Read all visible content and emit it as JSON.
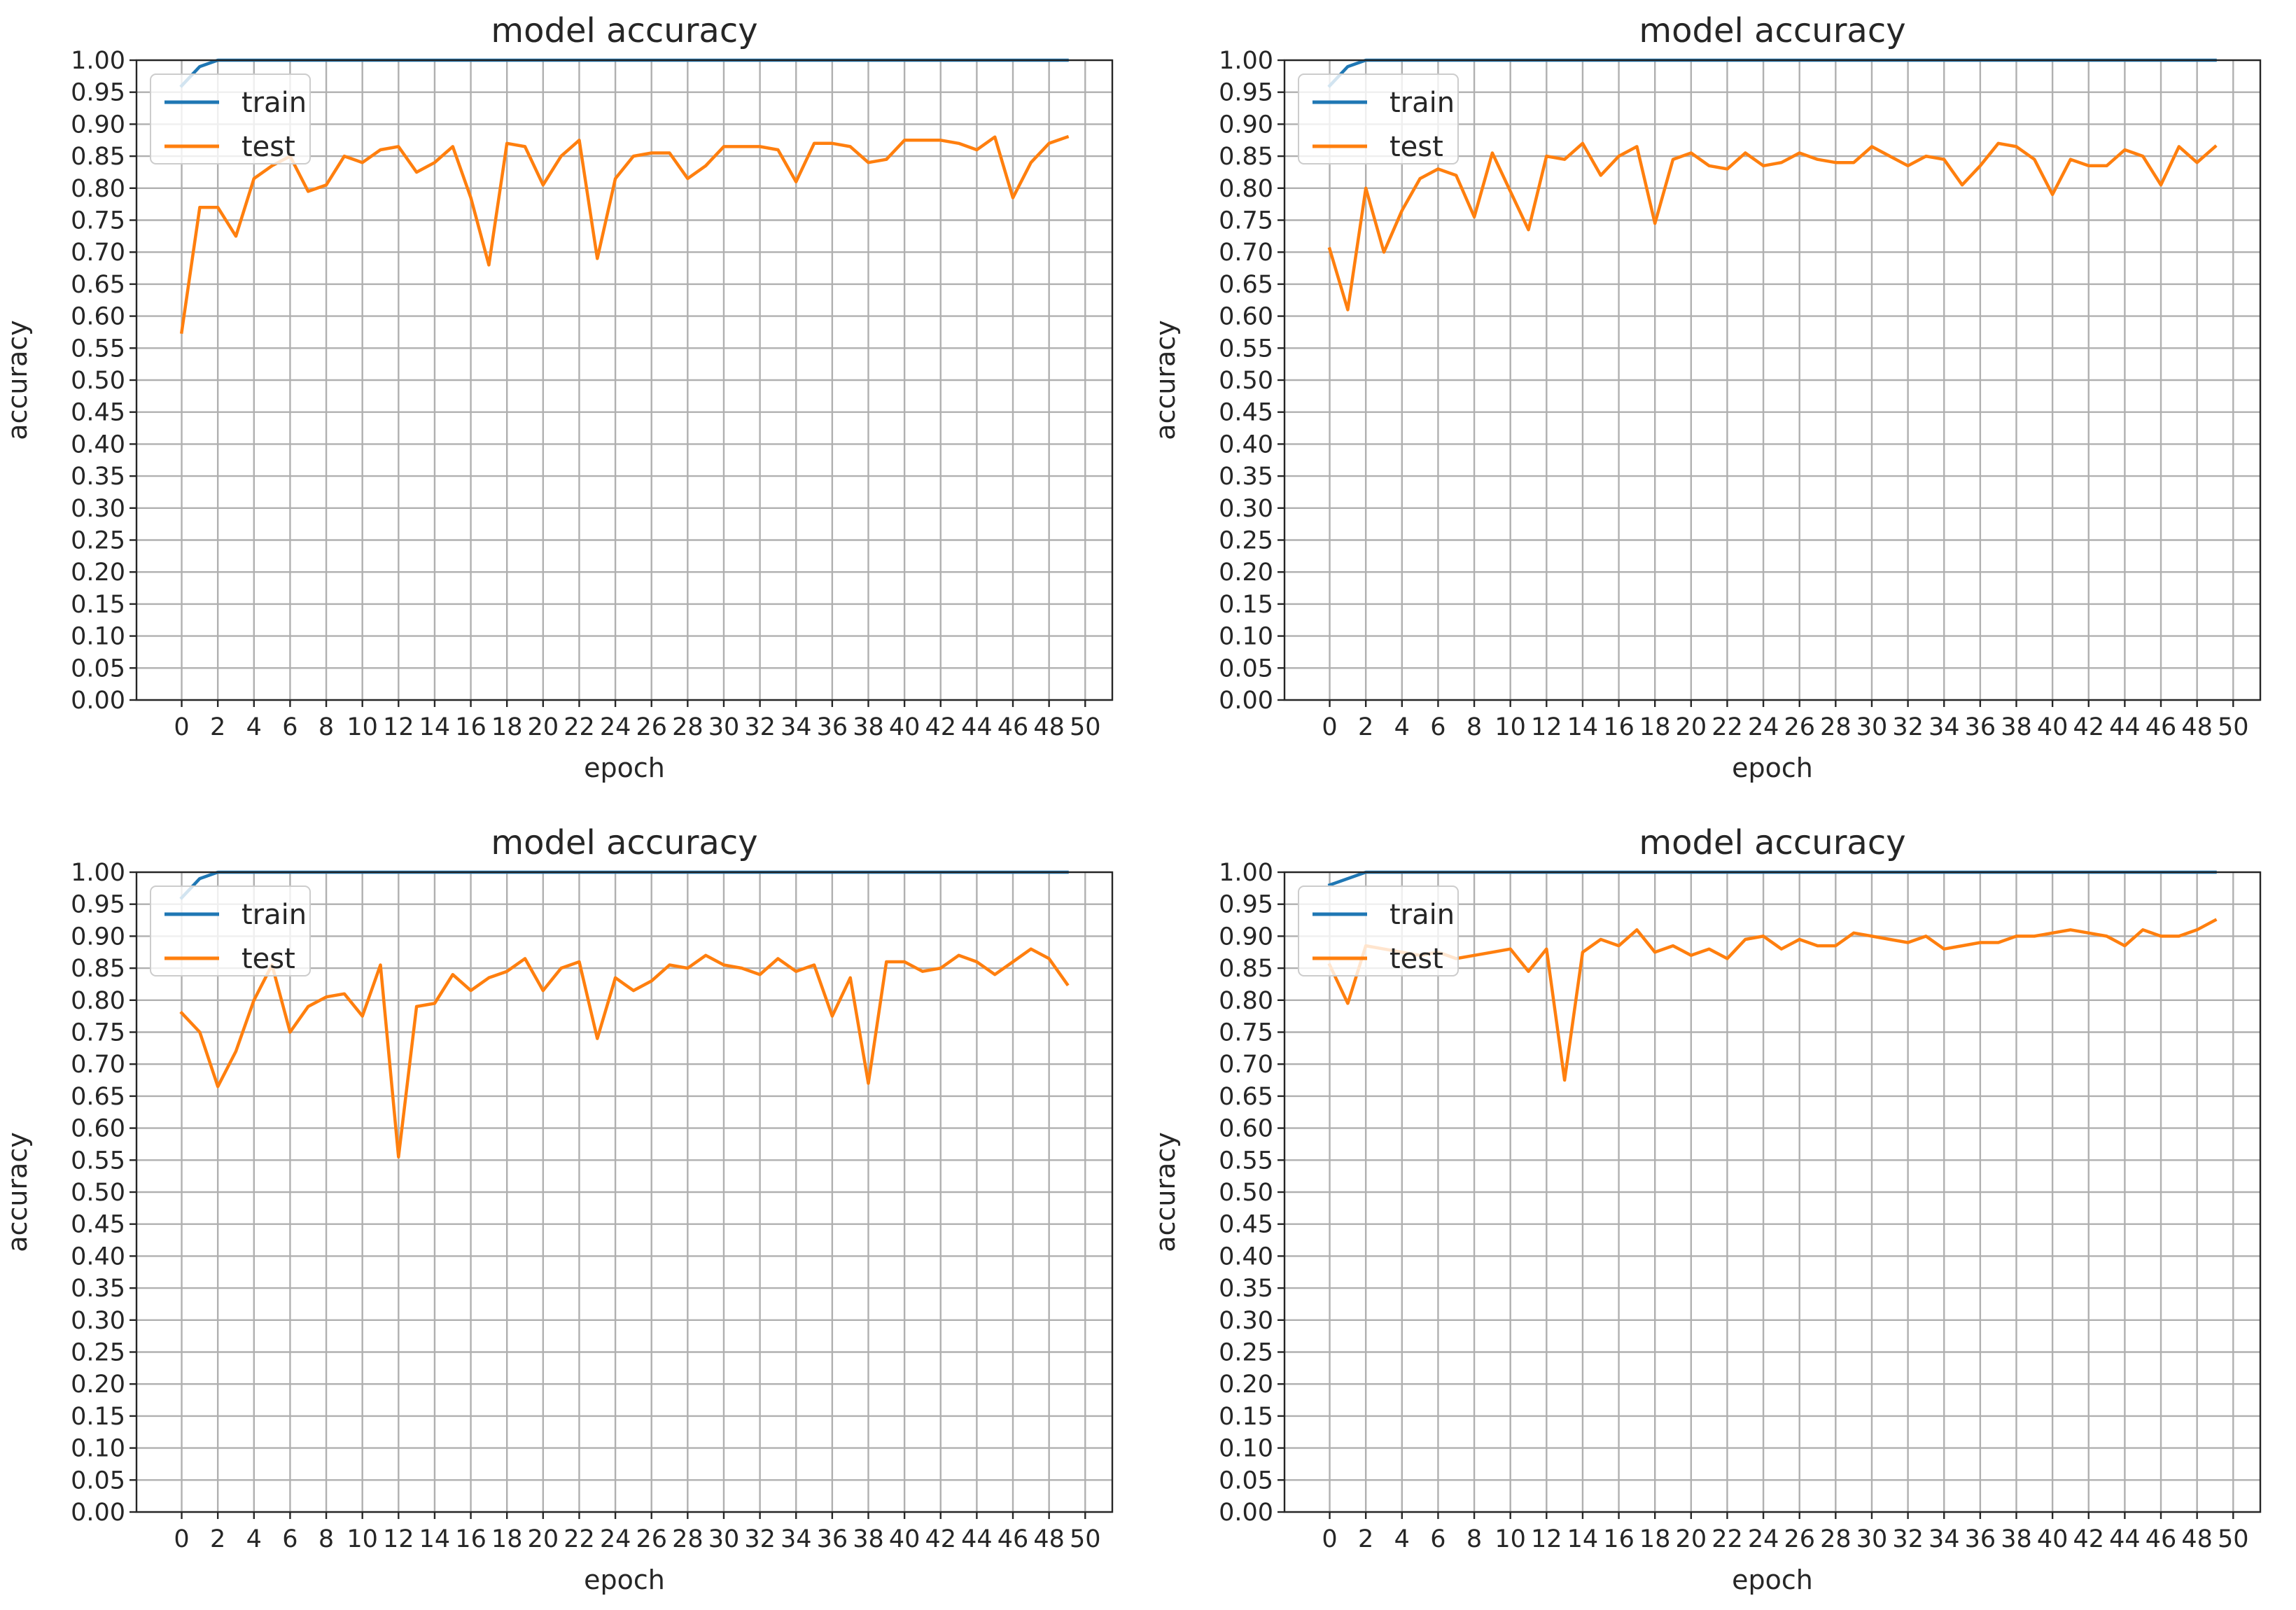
{
  "chart_data": [
    {
      "type": "line",
      "title": "model accuracy",
      "xlabel": "epoch",
      "ylabel": "accuracy",
      "xlim": [
        -2.5,
        51.5
      ],
      "ylim": [
        0,
        1
      ],
      "xticks": [
        0,
        2,
        4,
        6,
        8,
        10,
        12,
        14,
        16,
        18,
        20,
        22,
        24,
        26,
        28,
        30,
        32,
        34,
        36,
        38,
        40,
        42,
        44,
        46,
        48,
        50
      ],
      "yticks": [
        0,
        0.05,
        0.1,
        0.15,
        0.2,
        0.25,
        0.3,
        0.35,
        0.4,
        0.45,
        0.5,
        0.55,
        0.6,
        0.65,
        0.7,
        0.75,
        0.8,
        0.85,
        0.9,
        0.95,
        1.0
      ],
      "grid": true,
      "legend_position": "upper-left",
      "x": [
        0,
        1,
        2,
        3,
        4,
        5,
        6,
        7,
        8,
        9,
        10,
        11,
        12,
        13,
        14,
        15,
        16,
        17,
        18,
        19,
        20,
        21,
        22,
        23,
        24,
        25,
        26,
        27,
        28,
        29,
        30,
        31,
        32,
        33,
        34,
        35,
        36,
        37,
        38,
        39,
        40,
        41,
        42,
        43,
        44,
        45,
        46,
        47,
        48,
        49
      ],
      "series": [
        {
          "name": "train",
          "color": "#1f77b4",
          "values": [
            0.96,
            0.99,
            1,
            1,
            1,
            1,
            1,
            1,
            1,
            1,
            1,
            1,
            1,
            1,
            1,
            1,
            1,
            1,
            1,
            1,
            1,
            1,
            1,
            1,
            1,
            1,
            1,
            1,
            1,
            1,
            1,
            1,
            1,
            1,
            1,
            1,
            1,
            1,
            1,
            1,
            1,
            1,
            1,
            1,
            1,
            1,
            1,
            1,
            1,
            1
          ]
        },
        {
          "name": "test",
          "color": "#ff7f0e",
          "values": [
            0.575,
            0.77,
            0.77,
            0.725,
            0.815,
            0.835,
            0.85,
            0.795,
            0.805,
            0.85,
            0.84,
            0.86,
            0.865,
            0.825,
            0.84,
            0.865,
            0.785,
            0.68,
            0.87,
            0.865,
            0.805,
            0.85,
            0.875,
            0.69,
            0.815,
            0.85,
            0.855,
            0.855,
            0.815,
            0.835,
            0.865,
            0.865,
            0.865,
            0.86,
            0.81,
            0.87,
            0.87,
            0.865,
            0.84,
            0.845,
            0.875,
            0.875,
            0.875,
            0.87,
            0.86,
            0.88,
            0.785,
            0.84,
            0.87,
            0.88
          ]
        }
      ]
    },
    {
      "type": "line",
      "title": "model accuracy",
      "xlabel": "epoch",
      "ylabel": "accuracy",
      "xlim": [
        -2.5,
        51.5
      ],
      "ylim": [
        0,
        1
      ],
      "xticks": [
        0,
        2,
        4,
        6,
        8,
        10,
        12,
        14,
        16,
        18,
        20,
        22,
        24,
        26,
        28,
        30,
        32,
        34,
        36,
        38,
        40,
        42,
        44,
        46,
        48,
        50
      ],
      "yticks": [
        0,
        0.05,
        0.1,
        0.15,
        0.2,
        0.25,
        0.3,
        0.35,
        0.4,
        0.45,
        0.5,
        0.55,
        0.6,
        0.65,
        0.7,
        0.75,
        0.8,
        0.85,
        0.9,
        0.95,
        1.0
      ],
      "grid": true,
      "legend_position": "upper-left",
      "x": [
        0,
        1,
        2,
        3,
        4,
        5,
        6,
        7,
        8,
        9,
        10,
        11,
        12,
        13,
        14,
        15,
        16,
        17,
        18,
        19,
        20,
        21,
        22,
        23,
        24,
        25,
        26,
        27,
        28,
        29,
        30,
        31,
        32,
        33,
        34,
        35,
        36,
        37,
        38,
        39,
        40,
        41,
        42,
        43,
        44,
        45,
        46,
        47,
        48,
        49
      ],
      "series": [
        {
          "name": "train",
          "color": "#1f77b4",
          "values": [
            0.96,
            0.99,
            1,
            1,
            1,
            1,
            1,
            1,
            1,
            1,
            1,
            1,
            1,
            1,
            1,
            1,
            1,
            1,
            1,
            1,
            1,
            1,
            1,
            1,
            1,
            1,
            1,
            1,
            1,
            1,
            1,
            1,
            1,
            1,
            1,
            1,
            1,
            1,
            1,
            1,
            1,
            1,
            1,
            1,
            1,
            1,
            1,
            1,
            1,
            1
          ]
        },
        {
          "name": "test",
          "color": "#ff7f0e",
          "values": [
            0.705,
            0.61,
            0.8,
            0.7,
            0.765,
            0.815,
            0.83,
            0.82,
            0.755,
            0.855,
            0.795,
            0.735,
            0.85,
            0.845,
            0.87,
            0.82,
            0.85,
            0.865,
            0.745,
            0.845,
            0.855,
            0.835,
            0.83,
            0.855,
            0.835,
            0.84,
            0.855,
            0.845,
            0.84,
            0.84,
            0.865,
            0.85,
            0.835,
            0.85,
            0.845,
            0.805,
            0.835,
            0.87,
            0.865,
            0.845,
            0.79,
            0.845,
            0.835,
            0.835,
            0.86,
            0.85,
            0.805,
            0.865,
            0.84,
            0.865
          ]
        }
      ]
    },
    {
      "type": "line",
      "title": "model accuracy",
      "xlabel": "epoch",
      "ylabel": "accuracy",
      "xlim": [
        -2.5,
        51.5
      ],
      "ylim": [
        0,
        1
      ],
      "xticks": [
        0,
        2,
        4,
        6,
        8,
        10,
        12,
        14,
        16,
        18,
        20,
        22,
        24,
        26,
        28,
        30,
        32,
        34,
        36,
        38,
        40,
        42,
        44,
        46,
        48,
        50
      ],
      "yticks": [
        0,
        0.05,
        0.1,
        0.15,
        0.2,
        0.25,
        0.3,
        0.35,
        0.4,
        0.45,
        0.5,
        0.55,
        0.6,
        0.65,
        0.7,
        0.75,
        0.8,
        0.85,
        0.9,
        0.95,
        1.0
      ],
      "grid": true,
      "legend_position": "upper-left",
      "x": [
        0,
        1,
        2,
        3,
        4,
        5,
        6,
        7,
        8,
        9,
        10,
        11,
        12,
        13,
        14,
        15,
        16,
        17,
        18,
        19,
        20,
        21,
        22,
        23,
        24,
        25,
        26,
        27,
        28,
        29,
        30,
        31,
        32,
        33,
        34,
        35,
        36,
        37,
        38,
        39,
        40,
        41,
        42,
        43,
        44,
        45,
        46,
        47,
        48,
        49
      ],
      "series": [
        {
          "name": "train",
          "color": "#1f77b4",
          "values": [
            0.96,
            0.99,
            1,
            1,
            1,
            1,
            1,
            1,
            1,
            1,
            1,
            1,
            1,
            1,
            1,
            1,
            1,
            1,
            1,
            1,
            1,
            1,
            1,
            1,
            1,
            1,
            1,
            1,
            1,
            1,
            1,
            1,
            1,
            1,
            1,
            1,
            1,
            1,
            1,
            1,
            1,
            1,
            1,
            1,
            1,
            1,
            1,
            1,
            1,
            1
          ]
        },
        {
          "name": "test",
          "color": "#ff7f0e",
          "values": [
            0.78,
            0.75,
            0.665,
            0.72,
            0.8,
            0.855,
            0.75,
            0.79,
            0.805,
            0.81,
            0.775,
            0.855,
            0.555,
            0.79,
            0.795,
            0.84,
            0.815,
            0.835,
            0.845,
            0.865,
            0.815,
            0.85,
            0.86,
            0.74,
            0.835,
            0.815,
            0.83,
            0.855,
            0.85,
            0.87,
            0.855,
            0.85,
            0.84,
            0.865,
            0.845,
            0.855,
            0.775,
            0.835,
            0.67,
            0.86,
            0.86,
            0.845,
            0.85,
            0.87,
            0.86,
            0.84,
            0.86,
            0.88,
            0.865,
            0.825
          ]
        }
      ]
    },
    {
      "type": "line",
      "title": "model accuracy",
      "xlabel": "epoch",
      "ylabel": "accuracy",
      "xlim": [
        -2.5,
        51.5
      ],
      "ylim": [
        0,
        1
      ],
      "xticks": [
        0,
        2,
        4,
        6,
        8,
        10,
        12,
        14,
        16,
        18,
        20,
        22,
        24,
        26,
        28,
        30,
        32,
        34,
        36,
        38,
        40,
        42,
        44,
        46,
        48,
        50
      ],
      "yticks": [
        0,
        0.05,
        0.1,
        0.15,
        0.2,
        0.25,
        0.3,
        0.35,
        0.4,
        0.45,
        0.5,
        0.55,
        0.6,
        0.65,
        0.7,
        0.75,
        0.8,
        0.85,
        0.9,
        0.95,
        1.0
      ],
      "grid": true,
      "legend_position": "upper-left",
      "x": [
        0,
        1,
        2,
        3,
        4,
        5,
        6,
        7,
        8,
        9,
        10,
        11,
        12,
        13,
        14,
        15,
        16,
        17,
        18,
        19,
        20,
        21,
        22,
        23,
        24,
        25,
        26,
        27,
        28,
        29,
        30,
        31,
        32,
        33,
        34,
        35,
        36,
        37,
        38,
        39,
        40,
        41,
        42,
        43,
        44,
        45,
        46,
        47,
        48,
        49
      ],
      "series": [
        {
          "name": "train",
          "color": "#1f77b4",
          "values": [
            0.98,
            0.99,
            1,
            1,
            1,
            1,
            1,
            1,
            1,
            1,
            1,
            1,
            1,
            1,
            1,
            1,
            1,
            1,
            1,
            1,
            1,
            1,
            1,
            1,
            1,
            1,
            1,
            1,
            1,
            1,
            1,
            1,
            1,
            1,
            1,
            1,
            1,
            1,
            1,
            1,
            1,
            1,
            1,
            1,
            1,
            1,
            1,
            1,
            1,
            1
          ]
        },
        {
          "name": "test",
          "color": "#ff7f0e",
          "values": [
            0.855,
            0.795,
            0.885,
            0.88,
            0.875,
            0.87,
            0.875,
            0.865,
            0.87,
            0.875,
            0.88,
            0.845,
            0.88,
            0.675,
            0.875,
            0.895,
            0.885,
            0.91,
            0.875,
            0.885,
            0.87,
            0.88,
            0.865,
            0.895,
            0.9,
            0.88,
            0.895,
            0.885,
            0.885,
            0.905,
            0.9,
            0.895,
            0.89,
            0.9,
            0.88,
            0.885,
            0.89,
            0.89,
            0.9,
            0.9,
            0.905,
            0.91,
            0.905,
            0.9,
            0.885,
            0.91,
            0.9,
            0.9,
            0.91,
            0.925
          ]
        }
      ]
    }
  ]
}
